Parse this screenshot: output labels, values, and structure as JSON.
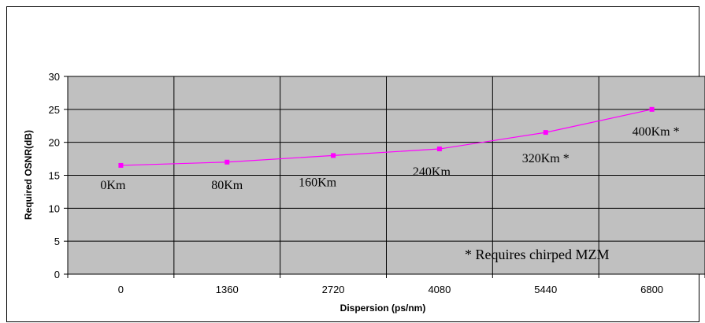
{
  "chart_data": {
    "type": "line",
    "title": "",
    "xlabel": "Dispersion (ps/nm)",
    "ylabel": "Required OSNR(dB)",
    "categories": [
      "0",
      "1360",
      "2720",
      "4080",
      "5440",
      "6800"
    ],
    "series": [
      {
        "values": [
          16.5,
          17.0,
          18.0,
          19.0,
          21.5,
          25.0
        ],
        "point_labels": [
          "0Km",
          "80Km",
          "160Km",
          "240Km",
          "320Km *",
          "400Km *"
        ]
      }
    ],
    "ylim": [
      0,
      30
    ],
    "y_ticks": [
      "0",
      "5",
      "10",
      "15",
      "20",
      "25",
      "30"
    ],
    "grid": true,
    "annotation": "* Requires chirped MZM"
  },
  "colors": {
    "plot_background": "#c0c0c0",
    "series_line": "#ff00ff",
    "grid": "#000000"
  }
}
